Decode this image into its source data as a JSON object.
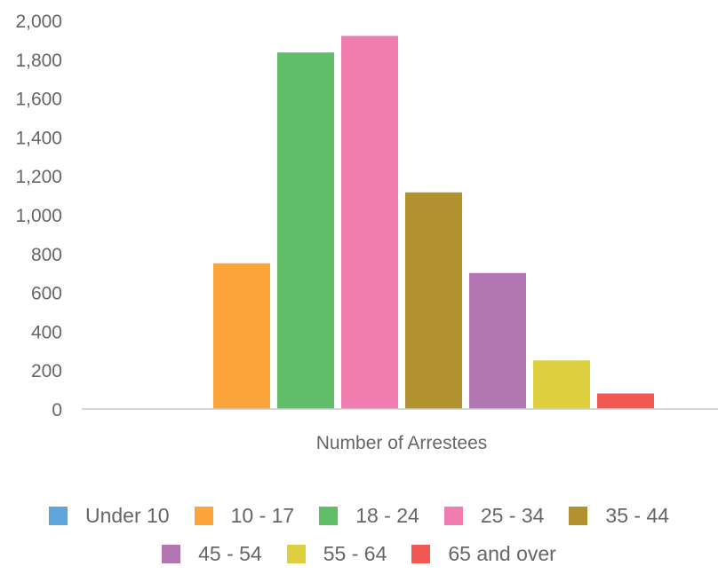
{
  "chart_data": {
    "type": "bar",
    "title": "",
    "xlabel": "Number of Arrestees",
    "ylabel": "",
    "ylim": [
      0,
      2000
    ],
    "yticks": [
      "0",
      "200",
      "400",
      "600",
      "800",
      "1,000",
      "1,200",
      "1,400",
      "1,600",
      "1,800",
      "2,000"
    ],
    "yticks_values": [
      0,
      200,
      400,
      600,
      800,
      1000,
      1200,
      1400,
      1600,
      1800,
      2000
    ],
    "grid": false,
    "legend_position": "bottom",
    "series": [
      {
        "name": "Under 10",
        "value": 0,
        "color": "#5DA5DA"
      },
      {
        "name": "10 - 17",
        "value": 750,
        "color": "#FAA43A"
      },
      {
        "name": "18 - 24",
        "value": 1835,
        "color": "#60BD68"
      },
      {
        "name": "25 - 34",
        "value": 1920,
        "color": "#F17CB0"
      },
      {
        "name": "35 - 44",
        "value": 1115,
        "color": "#B2912F"
      },
      {
        "name": "45 - 54",
        "value": 700,
        "color": "#B276B2"
      },
      {
        "name": "55 - 64",
        "value": 250,
        "color": "#DECF3F"
      },
      {
        "name": "65 and over",
        "value": 80,
        "color": "#F15854"
      }
    ]
  }
}
